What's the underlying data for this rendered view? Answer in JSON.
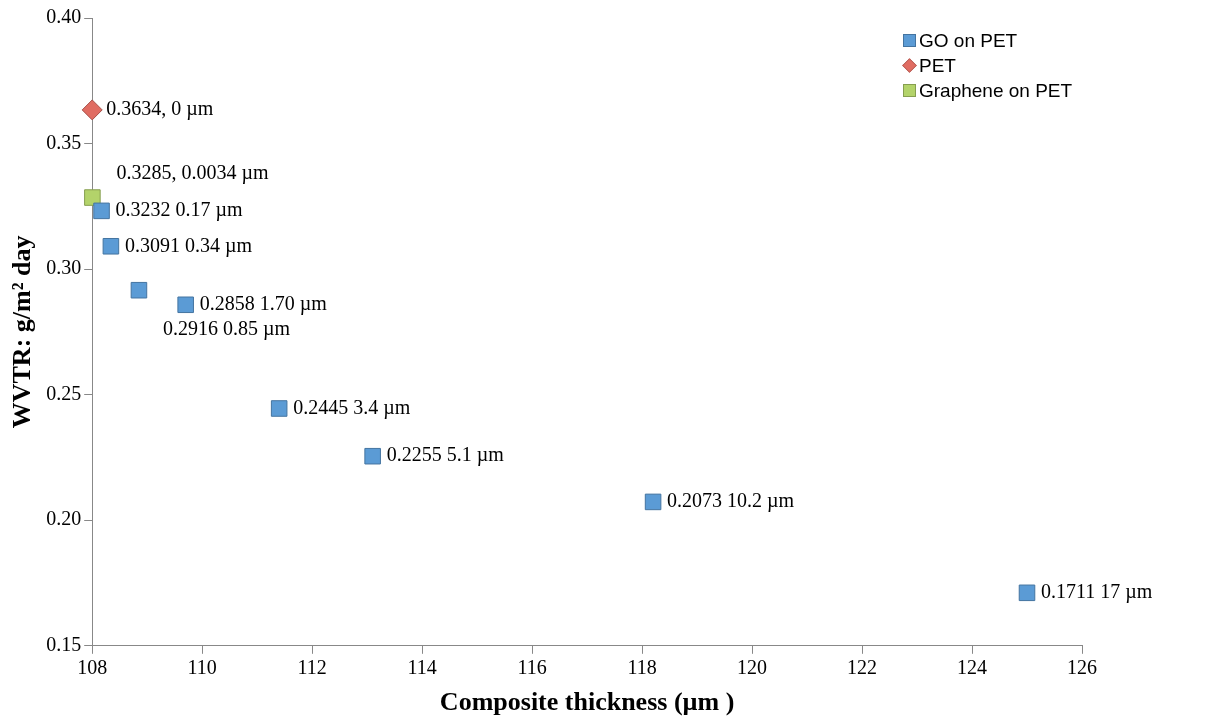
{
  "chart_data": {
    "type": "scatter",
    "xlabel": "Composite thickness (µm )",
    "ylabel": "WVTR: g/m² day",
    "xlim": [
      108,
      126
    ],
    "xticks": [
      108,
      110,
      112,
      114,
      116,
      118,
      120,
      122,
      124,
      126
    ],
    "ylim": [
      0.15,
      0.4
    ],
    "yticks": [
      {
        "value": 0.15,
        "label": "0.15"
      },
      {
        "value": 0.2,
        "label": "0.20"
      },
      {
        "value": 0.25,
        "label": "0.25"
      },
      {
        "value": 0.3,
        "label": "0.30"
      },
      {
        "value": 0.35,
        "label": "0.35"
      },
      {
        "value": 0.4,
        "label": "0.40"
      }
    ],
    "grid": false,
    "legend": "top right",
    "series": [
      {
        "name": "GO on PET",
        "color": "#5b9bd5",
        "marker": "square",
        "x": [
          108.17,
          108.34,
          108.85,
          109.7,
          111.4,
          113.1,
          118.2,
          125
        ],
        "values": [
          0.3232,
          0.3091,
          0.2916,
          0.2858,
          0.2445,
          0.2255,
          0.2073,
          0.1711
        ],
        "value_labels": [
          "0.3232 0.17 µm",
          "0.3091 0.34 µm",
          "0.2916 0.85 µm",
          "0.2858 1.70 µm",
          "0.2445 3.4 µm",
          "0.2255 5.1 µm",
          "0.2073 10.2 µm",
          "0.1711 17 µm"
        ]
      },
      {
        "name": "PET",
        "color": "#e06c62",
        "marker": "diamond",
        "x": [
          108
        ],
        "values": [
          0.3634
        ],
        "value_labels": [
          "0.3634, 0 µm"
        ]
      },
      {
        "name": "Graphene on PET",
        "color": "#b3d36a",
        "marker": "square",
        "x": [
          108.0034
        ],
        "values": [
          0.3285
        ],
        "value_labels": [
          "0.3285, 0.0034 µm"
        ]
      }
    ]
  }
}
